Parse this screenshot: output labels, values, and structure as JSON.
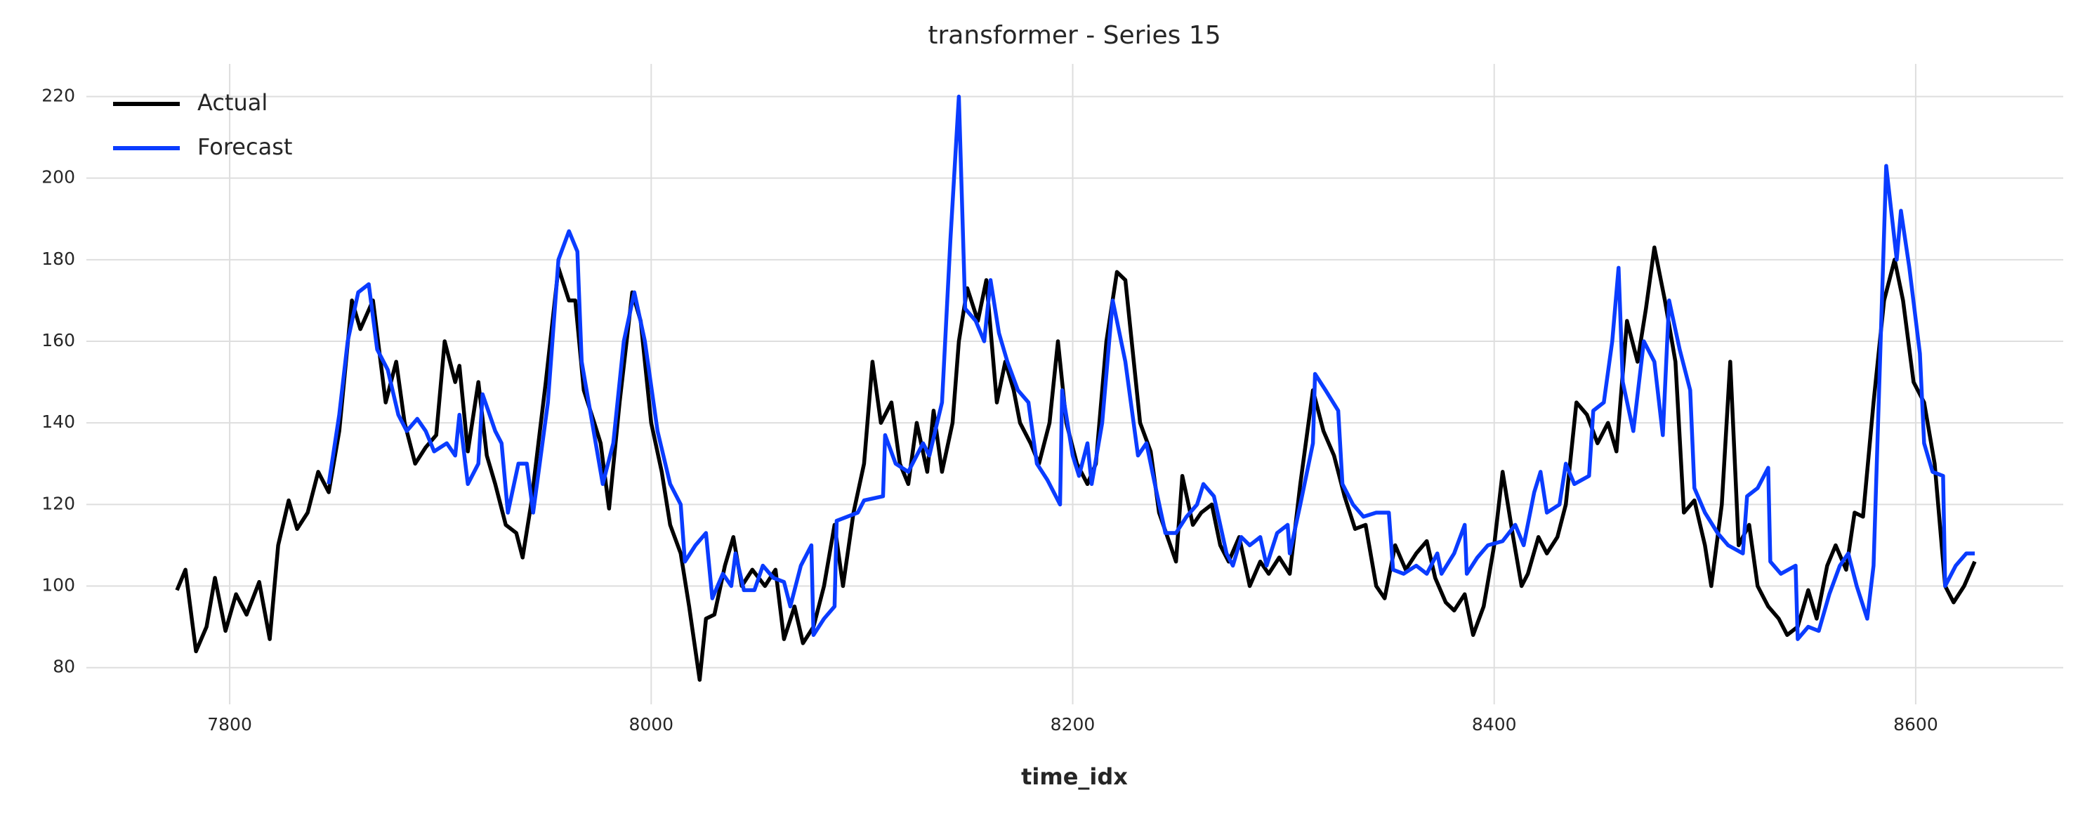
{
  "chart_data": {
    "type": "line",
    "title": "transformer - Series 15",
    "x_label": "time_idx",
    "xlim": [
      7732,
      8670
    ],
    "ylim": [
      71,
      228
    ],
    "xticks": [
      7800,
      8000,
      8200,
      8400,
      8600
    ],
    "yticks": [
      80,
      100,
      120,
      140,
      160,
      180,
      200,
      220
    ],
    "grid": true,
    "legend_position": "upper left",
    "series": [
      {
        "name": "Actual",
        "color": "#000000",
        "x": [
          7775,
          7779,
          7784,
          7789,
          7793,
          7798,
          7803,
          7808,
          7814,
          7819,
          7823,
          7828,
          7832,
          7837,
          7842,
          7847,
          7852,
          7858,
          7862,
          7868,
          7874,
          7879,
          7883,
          7888,
          7893,
          7898,
          7902,
          7907,
          7909,
          7913,
          7918,
          7922,
          7926,
          7931,
          7936,
          7939,
          7943,
          7950,
          7956,
          7961,
          7964,
          7968,
          7973,
          7976,
          7980,
          7985,
          7991,
          7995,
          8000,
          8005,
          8009,
          8014,
          8018,
          8023,
          8026,
          8030,
          8035,
          8039,
          8043,
          8048,
          8054,
          8059,
          8063,
          8068,
          8072,
          8077,
          8082,
          8087,
          8091,
          8096,
          8101,
          8105,
          8109,
          8114,
          8118,
          8122,
          8126,
          8131,
          8134,
          8138,
          8143,
          8146,
          8150,
          8155,
          8159,
          8164,
          8168,
          8172,
          8175,
          8180,
          8184,
          8189,
          8193,
          8197,
          8202,
          8207,
          8211,
          8216,
          8221,
          8225,
          8228,
          8232,
          8237,
          8241,
          8245,
          8249,
          8252,
          8257,
          8261,
          8266,
          8270,
          8274,
          8279,
          8284,
          8289,
          8293,
          8298,
          8303,
          8308,
          8314,
          8319,
          8324,
          8329,
          8334,
          8339,
          8344,
          8348,
          8353,
          8358,
          8363,
          8368,
          8372,
          8377,
          8381,
          8386,
          8390,
          8395,
          8400,
          8404,
          8409,
          8413,
          8416,
          8421,
          8425,
          8430,
          8434,
          8439,
          8444,
          8449,
          8454,
          8458,
          8463,
          8468,
          8472,
          8476,
          8481,
          8486,
          8490,
          8495,
          8500,
          8503,
          8508,
          8512,
          8516,
          8521,
          8525,
          8530,
          8535,
          8539,
          8544,
          8549,
          8553,
          8558,
          8562,
          8567,
          8571,
          8575,
          8580,
          8585,
          8590,
          8594,
          8599,
          8604,
          8609,
          8614,
          8618,
          8623,
          8628
        ],
        "values": [
          99,
          104,
          84,
          90,
          102,
          89,
          98,
          93,
          101,
          87,
          110,
          121,
          114,
          118,
          128,
          123,
          138,
          170,
          163,
          170,
          145,
          155,
          140,
          130,
          134,
          137,
          160,
          150,
          154,
          133,
          150,
          132,
          125,
          115,
          113,
          107,
          120,
          150,
          178,
          170,
          170,
          148,
          140,
          135,
          119,
          145,
          172,
          165,
          140,
          128,
          115,
          108,
          95,
          77,
          92,
          93,
          105,
          112,
          100,
          104,
          100,
          104,
          87,
          95,
          86,
          90,
          100,
          115,
          100,
          118,
          130,
          155,
          140,
          145,
          130,
          125,
          140,
          128,
          143,
          128,
          140,
          160,
          173,
          165,
          175,
          145,
          155,
          148,
          140,
          135,
          130,
          140,
          160,
          140,
          130,
          125,
          130,
          160,
          177,
          175,
          160,
          140,
          133,
          118,
          112,
          106,
          127,
          115,
          118,
          120,
          110,
          106,
          112,
          100,
          106,
          103,
          107,
          103,
          125,
          148,
          138,
          132,
          122,
          114,
          115,
          100,
          97,
          110,
          104,
          108,
          111,
          102,
          96,
          94,
          98,
          88,
          95,
          110,
          128,
          112,
          100,
          103,
          112,
          108,
          112,
          120,
          145,
          142,
          135,
          140,
          133,
          165,
          155,
          168,
          183,
          170,
          155,
          118,
          121,
          110,
          100,
          120,
          155,
          110,
          115,
          100,
          95,
          92,
          88,
          90,
          99,
          92,
          105,
          110,
          104,
          118,
          117,
          145,
          170,
          180,
          170,
          150,
          145,
          130,
          100,
          96,
          100,
          106
        ]
      },
      {
        "name": "Forecast",
        "color": "#0a3cff",
        "x": [
          7847,
          7852,
          7856,
          7861,
          7866,
          7870,
          7875,
          7880,
          7884,
          7889,
          7893,
          7897,
          7903,
          7907,
          7909,
          7913,
          7918,
          7920,
          7926,
          7929,
          7932,
          7937,
          7941,
          7944,
          7951,
          7956,
          7961,
          7965,
          7967,
          7972,
          7977,
          7982,
          7987,
          7992,
          7997,
          8003,
          8009,
          8014,
          8016,
          8021,
          8026,
          8029,
          8034,
          8038,
          8040,
          8044,
          8049,
          8053,
          8058,
          8063,
          8066,
          8071,
          8076,
          8077,
          8082,
          8087,
          8088,
          8093,
          8098,
          8101,
          8110,
          8111,
          8116,
          8122,
          8129,
          8132,
          8138,
          8142,
          8146,
          8149,
          8154,
          8158,
          8161,
          8165,
          8169,
          8174,
          8179,
          8183,
          8188,
          8194,
          8195,
          8200,
          8203,
          8207,
          8209,
          8214,
          8219,
          8225,
          8231,
          8235,
          8239,
          8244,
          8249,
          8254,
          8259,
          8262,
          8267,
          8273,
          8276,
          8280,
          8284,
          8289,
          8292,
          8297,
          8302,
          8303,
          8308,
          8314,
          8315,
          8320,
          8326,
          8328,
          8333,
          8338,
          8344,
          8350,
          8352,
          8357,
          8363,
          8368,
          8373,
          8375,
          8381,
          8386,
          8387,
          8392,
          8397,
          8404,
          8410,
          8414,
          8419,
          8422,
          8425,
          8431,
          8434,
          8438,
          8445,
          8447,
          8452,
          8456,
          8459,
          8461,
          8466,
          8471,
          8476,
          8480,
          8483,
          8488,
          8493,
          8495,
          8500,
          8506,
          8511,
          8518,
          8520,
          8525,
          8530,
          8531,
          8536,
          8543,
          8544,
          8549,
          8554,
          8559,
          8564,
          8568,
          8572,
          8577,
          8580,
          8586,
          8591,
          8593,
          8597,
          8602,
          8604,
          8608,
          8613,
          8614,
          8619,
          8624,
          8628
        ],
        "values": [
          125,
          142,
          160,
          172,
          174,
          158,
          153,
          142,
          138,
          141,
          138,
          133,
          135,
          132,
          142,
          125,
          130,
          147,
          138,
          135,
          118,
          130,
          130,
          118,
          145,
          180,
          187,
          182,
          155,
          140,
          125,
          135,
          160,
          172,
          160,
          138,
          125,
          120,
          106,
          110,
          113,
          97,
          103,
          100,
          108,
          99,
          99,
          105,
          102,
          101,
          95,
          105,
          110,
          88,
          92,
          95,
          116,
          117,
          118,
          121,
          122,
          137,
          130,
          128,
          135,
          132,
          145,
          185,
          220,
          168,
          165,
          160,
          175,
          162,
          155,
          148,
          145,
          130,
          126,
          120,
          148,
          132,
          127,
          135,
          125,
          140,
          170,
          155,
          132,
          135,
          125,
          113,
          113,
          117,
          120,
          125,
          122,
          108,
          105,
          112,
          110,
          112,
          105,
          113,
          115,
          108,
          120,
          135,
          152,
          148,
          143,
          125,
          120,
          117,
          118,
          118,
          104,
          103,
          105,
          103,
          108,
          103,
          108,
          115,
          103,
          107,
          110,
          111,
          115,
          110,
          123,
          128,
          118,
          120,
          130,
          125,
          127,
          143,
          145,
          160,
          178,
          150,
          138,
          160,
          155,
          137,
          170,
          158,
          148,
          124,
          118,
          113,
          110,
          108,
          122,
          124,
          129,
          106,
          103,
          105,
          87,
          90,
          89,
          98,
          105,
          108,
          100,
          92,
          105,
          203,
          180,
          192,
          178,
          157,
          135,
          128,
          127,
          100,
          105,
          108,
          108
        ]
      }
    ]
  }
}
